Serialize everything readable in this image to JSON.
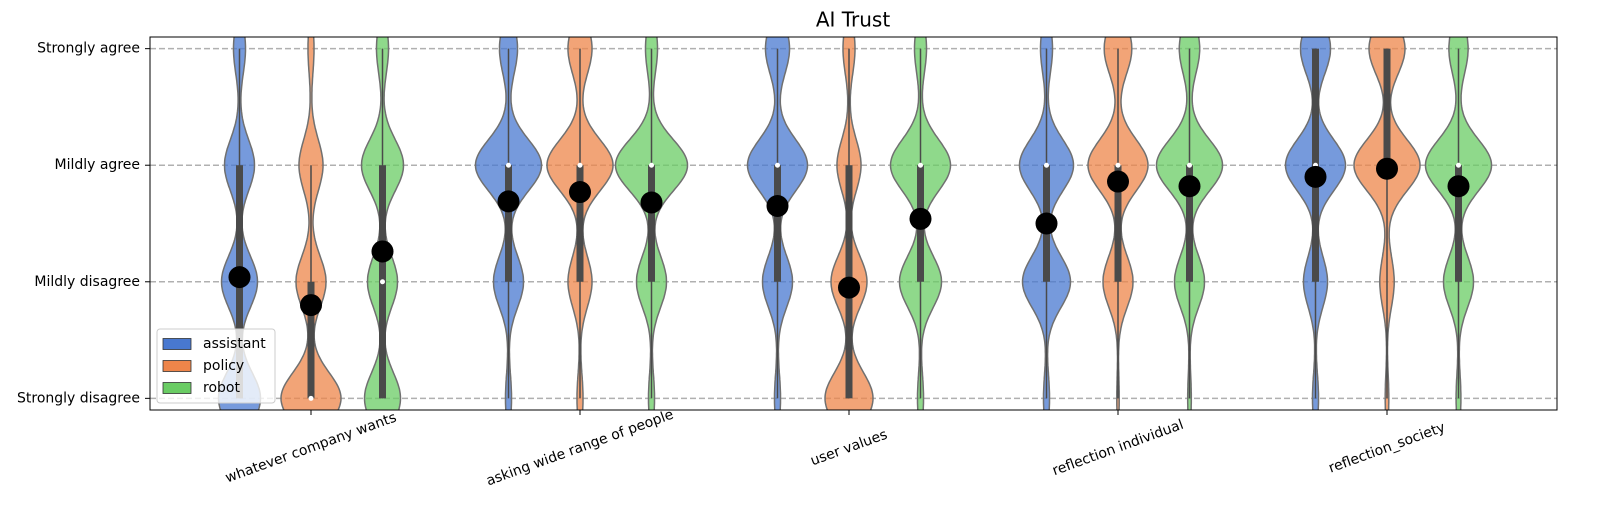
{
  "chart_data": {
    "type": "violin",
    "title": "AI Trust",
    "categories": [
      "whatever company wants",
      "asking wide range of people",
      "user values",
      "reflection individual",
      "reflection_society"
    ],
    "ylim": [
      0.9,
      4.1
    ],
    "yticks": [
      {
        "value": 1,
        "label": "Strongly disagree"
      },
      {
        "value": 2,
        "label": "Mildly disagree"
      },
      {
        "value": 3,
        "label": "Mildly agree"
      },
      {
        "value": 4,
        "label": "Strongly agree"
      }
    ],
    "grid": true,
    "legend": "lower left",
    "series": [
      {
        "name": "assistant",
        "color": "#4878d0",
        "means": [
          2.04,
          2.69,
          2.65,
          2.5,
          2.9
        ],
        "medians": [
          2,
          3,
          3,
          3,
          3
        ],
        "q1": [
          1,
          2,
          2,
          2,
          2
        ],
        "q3": [
          3,
          3,
          3,
          3,
          4
        ],
        "whisker_low": [
          1,
          1,
          1,
          1,
          1
        ],
        "whisker_high": [
          4,
          4,
          4,
          4,
          4
        ],
        "distributions": [
          [
            0.35,
            0.3,
            0.25,
            0.1
          ],
          [
            0.05,
            0.25,
            0.55,
            0.15
          ],
          [
            0.05,
            0.25,
            0.5,
            0.2
          ],
          [
            0.05,
            0.4,
            0.45,
            0.1
          ],
          [
            0.05,
            0.2,
            0.5,
            0.25
          ]
        ]
      },
      {
        "name": "policy",
        "color": "#ee854a",
        "means": [
          1.8,
          2.77,
          1.95,
          2.86,
          2.97
        ],
        "medians": [
          1,
          3,
          2,
          3,
          3
        ],
        "q1": [
          1,
          2,
          1,
          2,
          3
        ],
        "q3": [
          2,
          3,
          3,
          3,
          4
        ],
        "whisker_low": [
          1,
          1,
          1,
          1,
          1
        ],
        "whisker_high": [
          3,
          4,
          4,
          4,
          4
        ],
        "distributions": [
          [
            0.5,
            0.25,
            0.2,
            0.05
          ],
          [
            0.05,
            0.2,
            0.55,
            0.2
          ],
          [
            0.4,
            0.3,
            0.2,
            0.1
          ],
          [
            0.02,
            0.25,
            0.5,
            0.23
          ],
          [
            0.03,
            0.12,
            0.55,
            0.3
          ]
        ]
      },
      {
        "name": "robot",
        "color": "#6acc64",
        "means": [
          2.26,
          2.68,
          2.54,
          2.82,
          2.82
        ],
        "medians": [
          2,
          3,
          3,
          3,
          3
        ],
        "q1": [
          1,
          2,
          2,
          2,
          2
        ],
        "q3": [
          3,
          3,
          3,
          3,
          3
        ],
        "whisker_low": [
          1,
          1,
          1,
          1,
          1
        ],
        "whisker_high": [
          4,
          4,
          4,
          4,
          4
        ],
        "distributions": [
          [
            0.3,
            0.25,
            0.35,
            0.1
          ],
          [
            0.05,
            0.25,
            0.6,
            0.1
          ],
          [
            0.05,
            0.35,
            0.5,
            0.1
          ],
          [
            0.03,
            0.25,
            0.55,
            0.17
          ],
          [
            0.04,
            0.25,
            0.55,
            0.16
          ]
        ]
      }
    ]
  }
}
